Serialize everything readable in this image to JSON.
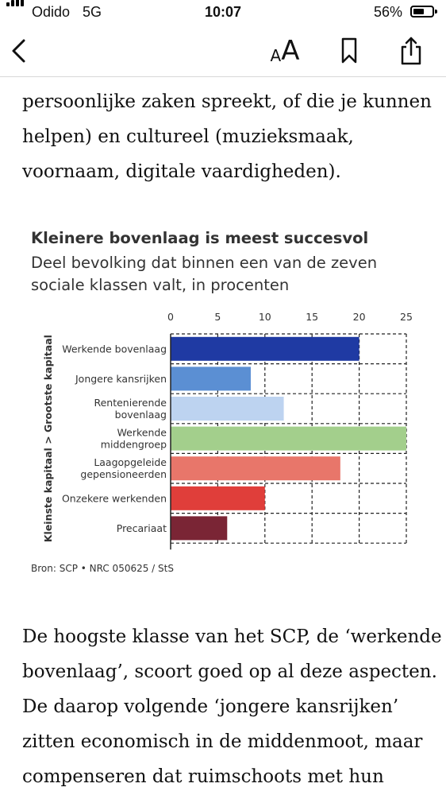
{
  "status_bar": {
    "carrier": "Odido",
    "network": "5G",
    "time": "10:07",
    "battery_percent": "56%",
    "battery_level": 0.56
  },
  "toolbar": {
    "back_icon": "chevron-left-icon",
    "text_size_label_small": "A",
    "text_size_label_large": "A",
    "bookmark_icon": "bookmark-icon",
    "share_icon": "share-icon"
  },
  "article": {
    "paragraph_top_lines": [
      "persoonlijke zaken spreekt, of die je kunnen",
      "helpen) en cultureel (muzieksmaak,",
      "voornaam, digitale vaardigheden)."
    ],
    "paragraph_bottom_lines": [
      "De hoogste klasse van het SCP, de ‘werkende",
      "bovenlaag’, scoort goed op al deze aspecten.",
      "De daarop volgende ‘jongere kansrijken’",
      "zitten economisch in de middenmoot, maar",
      "compenseren dat ruimschoots met hun"
    ]
  },
  "chart_data": {
    "type": "bar",
    "orientation": "horizontal",
    "title": "Kleinere bovenlaag is meest succesvol",
    "subtitle_lines": [
      "Deel bevolking dat binnen een van de zeven",
      "sociale klassen valt, in procenten"
    ],
    "ylabel": "Kleinste kapitaal > Grootste kapitaal",
    "xlim": [
      0,
      25
    ],
    "xticks": [
      "0",
      "5",
      "10",
      "15",
      "20",
      "25"
    ],
    "grid": true,
    "categories": [
      [
        "Werkende bovenlaag"
      ],
      [
        "Jongere kansrijken"
      ],
      [
        "Rentenierende",
        "bovenlaag"
      ],
      [
        "Werkende",
        "middengroep"
      ],
      [
        "Laagopgeleide",
        "gepensioneerden"
      ],
      [
        "Onzekere werkenden"
      ],
      [
        "Precariaat"
      ]
    ],
    "values": [
      20,
      8.5,
      12,
      25,
      18,
      10,
      6
    ],
    "colors": [
      "#1f3aa3",
      "#5b8fd3",
      "#bdd3f0",
      "#a3cf8c",
      "#e8766a",
      "#e03e3a",
      "#7a2535"
    ],
    "source": "Bron: SCP • NRC 050625 / StS"
  }
}
